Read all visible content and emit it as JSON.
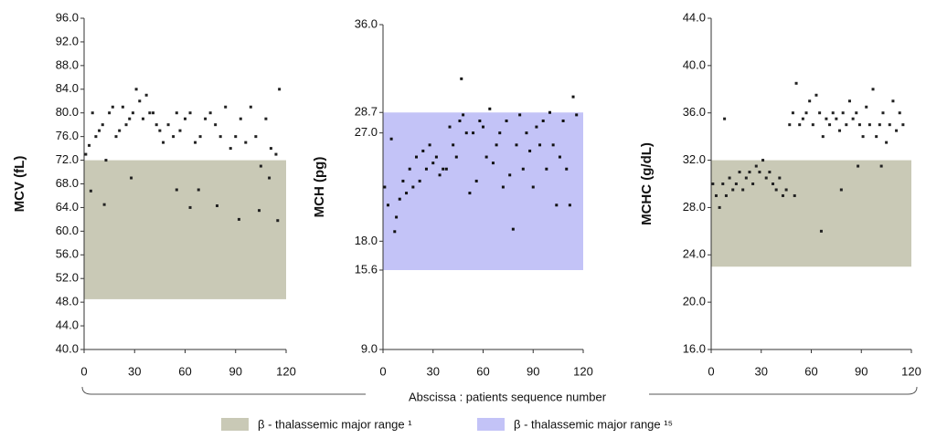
{
  "chart_data": [
    {
      "type": "scatter",
      "ylabel": "MCV (fL)",
      "ylim": [
        40,
        96
      ],
      "yticks": [
        {
          "value": 40,
          "label": "40.0"
        },
        {
          "value": 44,
          "label": "44.0"
        },
        {
          "value": 48,
          "label": "48.0"
        },
        {
          "value": 52,
          "label": "52.0"
        },
        {
          "value": 56,
          "label": "56.0"
        },
        {
          "value": 60,
          "label": "60.0"
        },
        {
          "value": 64,
          "label": "64.0"
        },
        {
          "value": 68,
          "label": "68.0"
        },
        {
          "value": 72,
          "label": "72.0"
        },
        {
          "value": 76,
          "label": "76.0"
        },
        {
          "value": 80,
          "label": "80.0"
        },
        {
          "value": 84,
          "label": "84.0"
        },
        {
          "value": 88,
          "label": "88.0"
        },
        {
          "value": 92,
          "label": "92.0"
        },
        {
          "value": 96,
          "label": "96.0"
        }
      ],
      "xlim": [
        0,
        120
      ],
      "xticks": [
        0,
        30,
        60,
        90,
        120
      ],
      "band": [
        48.5,
        72
      ],
      "band_color": "#c9c9b6",
      "color": "#222222",
      "x": [
        1,
        3,
        5,
        7,
        9,
        11,
        13,
        15,
        17,
        19,
        21,
        23,
        25,
        27,
        29,
        31,
        33,
        35,
        37,
        39,
        41,
        43,
        45,
        47,
        50,
        53,
        55,
        57,
        60,
        63,
        66,
        69,
        72,
        75,
        78,
        81,
        84,
        87,
        90,
        93,
        96,
        99,
        102,
        105,
        108,
        111,
        114,
        116,
        4,
        12,
        28,
        55,
        63,
        68,
        79,
        92,
        104,
        110,
        115
      ],
      "y": [
        73,
        74.5,
        80,
        76,
        77,
        78,
        72,
        80,
        81,
        76,
        77,
        81,
        78,
        79,
        80,
        84,
        82,
        79,
        83,
        80,
        80,
        78,
        77,
        75,
        78,
        76,
        80,
        77,
        79,
        80,
        75,
        76,
        79,
        80,
        78,
        76,
        81,
        74,
        76,
        79,
        75,
        81,
        76,
        71,
        79,
        74,
        73,
        84,
        66.8,
        64.5,
        69,
        67,
        64,
        67,
        64.3,
        62,
        63.5,
        69,
        61.8
      ]
    },
    {
      "type": "scatter",
      "ylabel": "MCH (pg)",
      "ylim": [
        9,
        36
      ],
      "yticks": [
        {
          "value": 9,
          "label": "9.0"
        },
        {
          "value": 15.6,
          "label": "15.6"
        },
        {
          "value": 18,
          "label": "18.0"
        },
        {
          "value": 27,
          "label": "27.0"
        },
        {
          "value": 28.7,
          "label": "28.7"
        },
        {
          "value": 36,
          "label": "36.0"
        }
      ],
      "xlim": [
        0,
        120
      ],
      "xticks": [
        0,
        30,
        60,
        90,
        120
      ],
      "band": [
        15.6,
        28.7
      ],
      "band_color": "#c3c3f7",
      "color": "#111111",
      "x": [
        1,
        3,
        5,
        7,
        8,
        10,
        12,
        14,
        16,
        18,
        20,
        22,
        24,
        26,
        28,
        30,
        32,
        34,
        36,
        38,
        40,
        42,
        44,
        46,
        47,
        48,
        50,
        52,
        54,
        56,
        58,
        60,
        62,
        64,
        66,
        68,
        70,
        72,
        74,
        76,
        78,
        80,
        82,
        84,
        86,
        88,
        90,
        92,
        94,
        96,
        98,
        100,
        102,
        104,
        106,
        108,
        110,
        112,
        114,
        116
      ],
      "y": [
        22.5,
        21,
        26.5,
        18.8,
        20,
        21.5,
        23,
        22,
        24,
        22.5,
        25,
        23,
        25.5,
        24,
        26,
        24.5,
        25,
        23.5,
        24,
        24,
        27.5,
        26,
        25,
        28,
        31.5,
        28.5,
        27,
        22,
        27,
        23,
        28,
        27.5,
        25,
        29,
        24.5,
        26,
        27,
        22.5,
        28,
        23.5,
        19,
        26,
        28.5,
        24,
        27,
        25.5,
        22.5,
        27.5,
        26,
        28,
        24,
        28.7,
        26,
        21,
        25,
        28,
        24,
        21,
        30,
        28.5
      ]
    },
    {
      "type": "scatter",
      "ylabel": "MCHC (g/dL)",
      "ylim": [
        16,
        44
      ],
      "yticks": [
        {
          "value": 16,
          "label": "16.0"
        },
        {
          "value": 20,
          "label": "20.0"
        },
        {
          "value": 24,
          "label": "24.0"
        },
        {
          "value": 28,
          "label": "28.0"
        },
        {
          "value": 32,
          "label": "32.0"
        },
        {
          "value": 36,
          "label": "36.0"
        },
        {
          "value": 40,
          "label": "40.0"
        },
        {
          "value": 44,
          "label": "44.0"
        }
      ],
      "xlim": [
        0,
        120
      ],
      "xticks": [
        0,
        30,
        60,
        90,
        120
      ],
      "band": [
        23,
        32
      ],
      "band_color": "#c9c9b6",
      "color": "#222222",
      "x": [
        1,
        3,
        5,
        7,
        9,
        11,
        13,
        15,
        17,
        19,
        21,
        23,
        25,
        27,
        29,
        31,
        33,
        35,
        37,
        39,
        41,
        43,
        45,
        8,
        47,
        49,
        51,
        53,
        55,
        57,
        59,
        61,
        63,
        65,
        67,
        69,
        71,
        73,
        75,
        77,
        79,
        81,
        83,
        85,
        87,
        89,
        91,
        93,
        95,
        97,
        99,
        101,
        103,
        105,
        107,
        109,
        111,
        113,
        115,
        50,
        66,
        78,
        88,
        102
      ],
      "y": [
        30,
        29,
        28,
        30,
        29,
        30.5,
        29.5,
        30,
        31,
        29.5,
        30.5,
        31,
        30,
        31.5,
        31,
        32,
        30.5,
        31,
        30,
        29.5,
        30.5,
        29,
        29.5,
        35.5,
        35,
        36,
        38.5,
        35,
        35.5,
        36,
        37,
        35,
        37.5,
        36,
        34,
        35.5,
        35,
        36,
        35.5,
        34.5,
        36,
        35,
        37,
        35.5,
        36,
        35,
        34,
        36.5,
        35,
        38,
        34,
        35,
        36,
        33.5,
        35,
        37,
        34.5,
        36,
        35,
        29,
        26,
        29.5,
        31.5,
        31.5
      ]
    }
  ],
  "xlabel": "Abscissa : patients sequence number",
  "legend": [
    {
      "name": "β - thalassemic major range ¹",
      "color": "#c9c9b6"
    },
    {
      "name": "β - thalassemic major range ¹⁵",
      "color": "#c3c3f7"
    }
  ]
}
